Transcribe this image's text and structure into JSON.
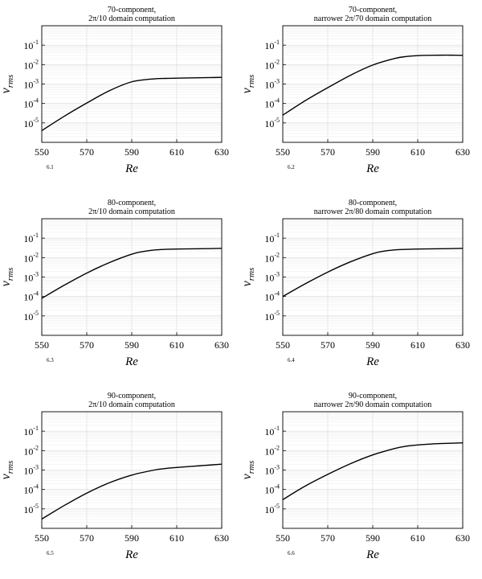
{
  "chart_data": [
    {
      "type": "line",
      "panel_label": "6.1",
      "title_line1": "70-component,",
      "title_line2": "2π/10 domain computation",
      "xlabel": "Re",
      "ylabel_main": "v",
      "ylabel_sub": "rms",
      "log_y": true,
      "xlim": [
        550,
        630
      ],
      "ylim": [
        1e-06,
        1
      ],
      "x_ticks": [
        "550",
        "570",
        "590",
        "610",
        "630"
      ],
      "y_tick_bases": [
        "10",
        "10",
        "10",
        "10",
        "10"
      ],
      "y_tick_exps": [
        "-5",
        "-4",
        "-3",
        "-2",
        "-1"
      ],
      "grid": true,
      "x": [
        550,
        560,
        570,
        580,
        590,
        600,
        605,
        610,
        615,
        620,
        625,
        630
      ],
      "y": [
        4e-06,
        2.2e-05,
        0.000105,
        0.00045,
        0.0013,
        0.00185,
        0.00195,
        0.002,
        0.00205,
        0.0021,
        0.00215,
        0.0022
      ]
    },
    {
      "type": "line",
      "panel_label": "6.2",
      "title_line1": "70-component,",
      "title_line2": "narrower 2π/70 domain computation",
      "xlabel": "Re",
      "ylabel_main": "v",
      "ylabel_sub": "rms",
      "log_y": true,
      "xlim": [
        550,
        630
      ],
      "ylim": [
        1e-06,
        1
      ],
      "x_ticks": [
        "550",
        "570",
        "590",
        "610",
        "630"
      ],
      "y_tick_bases": [
        "10",
        "10",
        "10",
        "10",
        "10"
      ],
      "y_tick_exps": [
        "-5",
        "-4",
        "-3",
        "-2",
        "-1"
      ],
      "grid": true,
      "x": [
        550,
        560,
        570,
        580,
        590,
        600,
        605,
        610,
        615,
        620,
        625,
        630
      ],
      "y": [
        2.5e-05,
        0.00014,
        0.00065,
        0.0028,
        0.0095,
        0.021,
        0.026,
        0.029,
        0.03,
        0.0305,
        0.0305,
        0.03
      ]
    },
    {
      "type": "line",
      "panel_label": "6.3",
      "title_line1": "80-component,",
      "title_line2": "2π/10 domain computation",
      "xlabel": "Re",
      "ylabel_main": "v",
      "ylabel_sub": "rms",
      "log_y": true,
      "xlim": [
        550,
        630
      ],
      "ylim": [
        1e-06,
        1
      ],
      "x_ticks": [
        "550",
        "570",
        "590",
        "610",
        "630"
      ],
      "y_tick_bases": [
        "10",
        "10",
        "10",
        "10",
        "10"
      ],
      "y_tick_exps": [
        "-5",
        "-4",
        "-3",
        "-2",
        "-1"
      ],
      "grid": true,
      "x": [
        550,
        560,
        570,
        580,
        590,
        595,
        600,
        605,
        610,
        620,
        630
      ],
      "y": [
        8e-05,
        0.00038,
        0.0016,
        0.0055,
        0.015,
        0.0205,
        0.0245,
        0.0265,
        0.0275,
        0.0285,
        0.03
      ]
    },
    {
      "type": "line",
      "panel_label": "6.4",
      "title_line1": "80-component,",
      "title_line2": "narrower 2π/80 domain computation",
      "xlabel": "Re",
      "ylabel_main": "v",
      "ylabel_sub": "rms",
      "log_y": true,
      "xlim": [
        550,
        630
      ],
      "ylim": [
        1e-06,
        1
      ],
      "x_ticks": [
        "550",
        "570",
        "590",
        "610",
        "630"
      ],
      "y_tick_bases": [
        "10",
        "10",
        "10",
        "10",
        "10"
      ],
      "y_tick_exps": [
        "-5",
        "-4",
        "-3",
        "-2",
        "-1"
      ],
      "grid": true,
      "x": [
        550,
        560,
        570,
        580,
        590,
        595,
        600,
        605,
        610,
        620,
        630
      ],
      "y": [
        0.0001,
        0.00045,
        0.0018,
        0.006,
        0.016,
        0.0215,
        0.025,
        0.0265,
        0.0275,
        0.0285,
        0.03
      ]
    },
    {
      "type": "line",
      "panel_label": "6.5",
      "title_line1": "90-component,",
      "title_line2": "2π/10 domain computation",
      "xlabel": "Re",
      "ylabel_main": "v",
      "ylabel_sub": "rms",
      "log_y": true,
      "xlim": [
        550,
        630
      ],
      "ylim": [
        1e-06,
        1
      ],
      "x_ticks": [
        "550",
        "570",
        "590",
        "610",
        "630"
      ],
      "y_tick_bases": [
        "10",
        "10",
        "10",
        "10",
        "10"
      ],
      "y_tick_exps": [
        "-5",
        "-4",
        "-3",
        "-2",
        "-1"
      ],
      "grid": true,
      "x": [
        550,
        560,
        570,
        580,
        590,
        600,
        605,
        610,
        620,
        630
      ],
      "y": [
        3e-06,
        1.5e-05,
        6.5e-05,
        0.00022,
        0.00055,
        0.001,
        0.0012,
        0.00135,
        0.00165,
        0.002
      ]
    },
    {
      "type": "line",
      "panel_label": "6.6",
      "title_line1": "90-component,",
      "title_line2": "narrower 2π/90 domain computation",
      "xlabel": "Re",
      "ylabel_main": "v",
      "ylabel_sub": "rms",
      "log_y": true,
      "xlim": [
        550,
        630
      ],
      "ylim": [
        1e-06,
        1
      ],
      "x_ticks": [
        "550",
        "570",
        "590",
        "610",
        "630"
      ],
      "y_tick_bases": [
        "10",
        "10",
        "10",
        "10",
        "10"
      ],
      "y_tick_exps": [
        "-5",
        "-4",
        "-3",
        "-2",
        "-1"
      ],
      "grid": true,
      "x": [
        550,
        560,
        570,
        580,
        590,
        600,
        605,
        610,
        615,
        620,
        630
      ],
      "y": [
        3e-05,
        0.00015,
        0.0006,
        0.0021,
        0.006,
        0.013,
        0.017,
        0.0195,
        0.0215,
        0.023,
        0.025
      ]
    }
  ]
}
